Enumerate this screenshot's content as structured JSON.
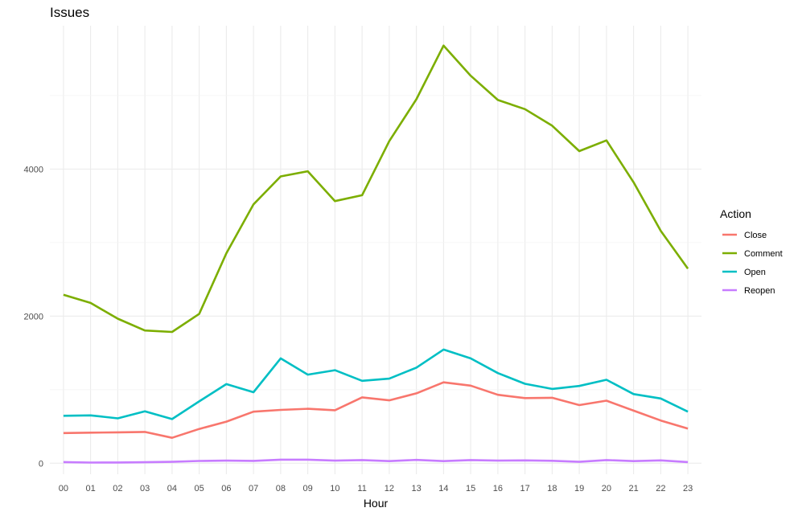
{
  "chart_data": {
    "type": "line",
    "title": "Issues",
    "xlabel": "Hour",
    "ylabel": "",
    "x": [
      "00",
      "01",
      "02",
      "03",
      "04",
      "05",
      "06",
      "07",
      "08",
      "09",
      "10",
      "11",
      "12",
      "13",
      "14",
      "15",
      "16",
      "17",
      "18",
      "19",
      "20",
      "21",
      "22",
      "23"
    ],
    "ylim": [
      -150,
      5950
    ],
    "yticks": [
      0,
      2000,
      4000
    ],
    "grid": true,
    "legend": {
      "title": "Action",
      "position": "right"
    },
    "series": [
      {
        "name": "Close",
        "color": "#F8766D",
        "values": [
          410,
          415,
          420,
          425,
          345,
          465,
          565,
          700,
          725,
          740,
          720,
          895,
          855,
          950,
          1100,
          1055,
          930,
          885,
          890,
          790,
          850,
          715,
          580,
          470
        ]
      },
      {
        "name": "Comment",
        "color": "#7CAE00",
        "values": [
          2290,
          2180,
          1965,
          1805,
          1785,
          2030,
          2855,
          3520,
          3900,
          3970,
          3565,
          3645,
          4380,
          4950,
          5680,
          5270,
          4940,
          4815,
          4590,
          4245,
          4390,
          3820,
          3160,
          2645
        ]
      },
      {
        "name": "Open",
        "color": "#00BFC4",
        "values": [
          645,
          650,
          610,
          705,
          600,
          840,
          1075,
          965,
          1425,
          1205,
          1265,
          1120,
          1150,
          1300,
          1545,
          1425,
          1225,
          1080,
          1010,
          1050,
          1135,
          940,
          880,
          700
        ]
      },
      {
        "name": "Reopen",
        "color": "#C77CFF",
        "values": [
          15,
          8,
          10,
          13,
          18,
          30,
          35,
          32,
          48,
          48,
          35,
          42,
          28,
          45,
          28,
          42,
          35,
          38,
          33,
          18,
          42,
          28,
          38,
          15
        ]
      }
    ]
  }
}
